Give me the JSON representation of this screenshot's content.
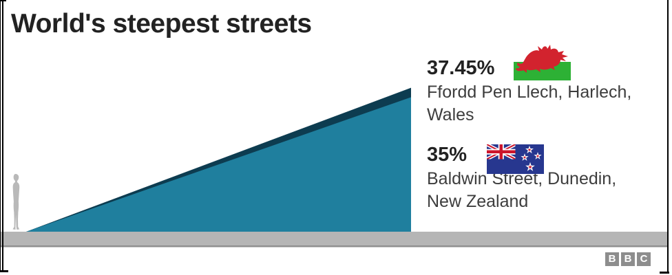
{
  "title": "World's steepest streets",
  "chart_data": {
    "type": "area",
    "title": "World's steepest streets",
    "description": "Two overlaid right-triangle wedges drawn to scale comparing street gradients; a human silhouette at the base gives scale; grey ground strip along the bottom.",
    "series": [
      {
        "name": "Ffordd Pen Llech, Harlech, Wales",
        "gradient_percent": 37.45,
        "label": "37.45%",
        "color": "#0d3c50"
      },
      {
        "name": "Baldwin Street, Dunedin, New Zealand",
        "gradient_percent": 35,
        "label": "35%",
        "color": "#1f7f9e"
      }
    ],
    "unit": "% gradient",
    "legend_position": "right",
    "grid": false
  },
  "annotations": [
    {
      "value": "37.45%",
      "flag": "wales-flag",
      "name_lines": [
        "Ffordd Pen Llech, Harlech,",
        "Wales"
      ]
    },
    {
      "value": "35%",
      "flag": "new-zealand-flag",
      "name_lines": [
        "Baldwin Street, Dunedin,",
        "New Zealand"
      ]
    }
  ],
  "footer": {
    "logo_letters": [
      "B",
      "B",
      "C"
    ]
  },
  "colors": {
    "slope_wales": "#0d3c50",
    "slope_new_zealand": "#1f7f9e",
    "ground": "#b5b5b5",
    "ground_shadow": "#8f8f8f",
    "person_silhouette": "#b9b9b9",
    "title_text": "#222222",
    "body_text": "#3d3d3d",
    "bbc_logo_gray": "#8d8d8d",
    "wales_flag_green": "#2db135",
    "wales_dragon_red": "#d2232e",
    "nz_flag_blue": "#27378f",
    "nz_flag_red": "#cc142b"
  }
}
